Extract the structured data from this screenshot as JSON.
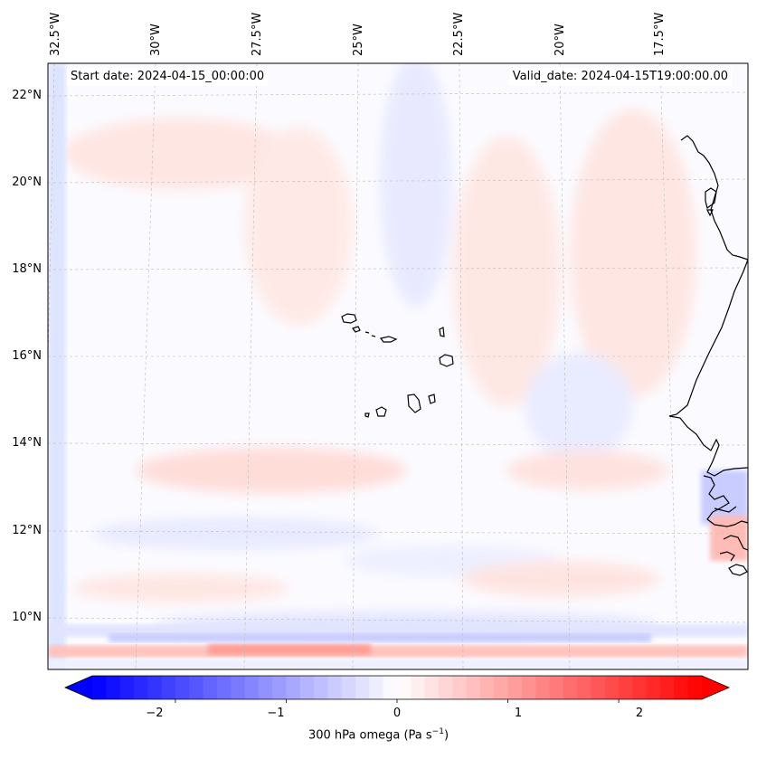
{
  "map": {
    "start_date": "Start date: 2024-04-15_00:00:00",
    "valid_date": "Valid_date: 2024-04-15T19:00:00.00",
    "lon_labels": [
      "32.5°W",
      "30°W",
      "27.5°W",
      "25°W",
      "22.5°W",
      "20°W",
      "17.5°W"
    ],
    "lat_labels": [
      "22°N",
      "20°N",
      "18°N",
      "16°N",
      "14°N",
      "12°N",
      "10°N"
    ],
    "field": "300 hPa omega",
    "colormap": "bwr",
    "colors": {
      "negative": "#0000ff",
      "zero": "#ffffff",
      "positive": "#ff0000",
      "coast": "#000000"
    }
  },
  "colorbar": {
    "label_prefix": "300 hPa omega (Pa s",
    "label_exponent": "−1",
    "label_suffix": ")",
    "ticks": [
      "−2",
      "−1",
      "0",
      "1",
      "2"
    ],
    "range": [
      -2.75,
      2.75
    ],
    "extend": "both"
  }
}
